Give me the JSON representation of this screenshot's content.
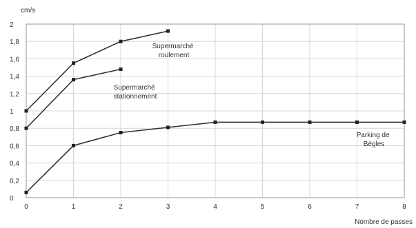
{
  "chart_data": {
    "type": "line",
    "title": "",
    "xlabel": "Nombre de passes",
    "ylabel": "cm/s",
    "xlim": [
      0,
      8
    ],
    "ylim": [
      0,
      2
    ],
    "grid": true,
    "x_ticks": [
      "0",
      "1",
      "2",
      "3",
      "4",
      "5",
      "6",
      "7",
      "8"
    ],
    "y_ticks": [
      "0",
      "0,2",
      "0,4",
      "0,6",
      "0,8",
      "1",
      "1,2",
      "1,4",
      "1,6",
      "1,8",
      "2"
    ],
    "series": [
      {
        "name": "Supermarché roulement",
        "label_lines": [
          "Supermarché",
          "roulement"
        ],
        "x": [
          0,
          1,
          2,
          3
        ],
        "y": [
          1.0,
          1.55,
          1.8,
          1.92
        ]
      },
      {
        "name": "Supermarché stationnement",
        "label_lines": [
          "Supermarché",
          "stationnement"
        ],
        "x": [
          0,
          1,
          2
        ],
        "y": [
          0.8,
          1.36,
          1.48
        ]
      },
      {
        "name": "Parking de Bègles",
        "label_lines": [
          "Parking de",
          "Bègles"
        ],
        "x": [
          0,
          1,
          2,
          3,
          4,
          5,
          6,
          7,
          8
        ],
        "y": [
          0.06,
          0.6,
          0.75,
          0.81,
          0.87,
          0.87,
          0.87,
          0.87,
          0.87
        ]
      }
    ]
  }
}
